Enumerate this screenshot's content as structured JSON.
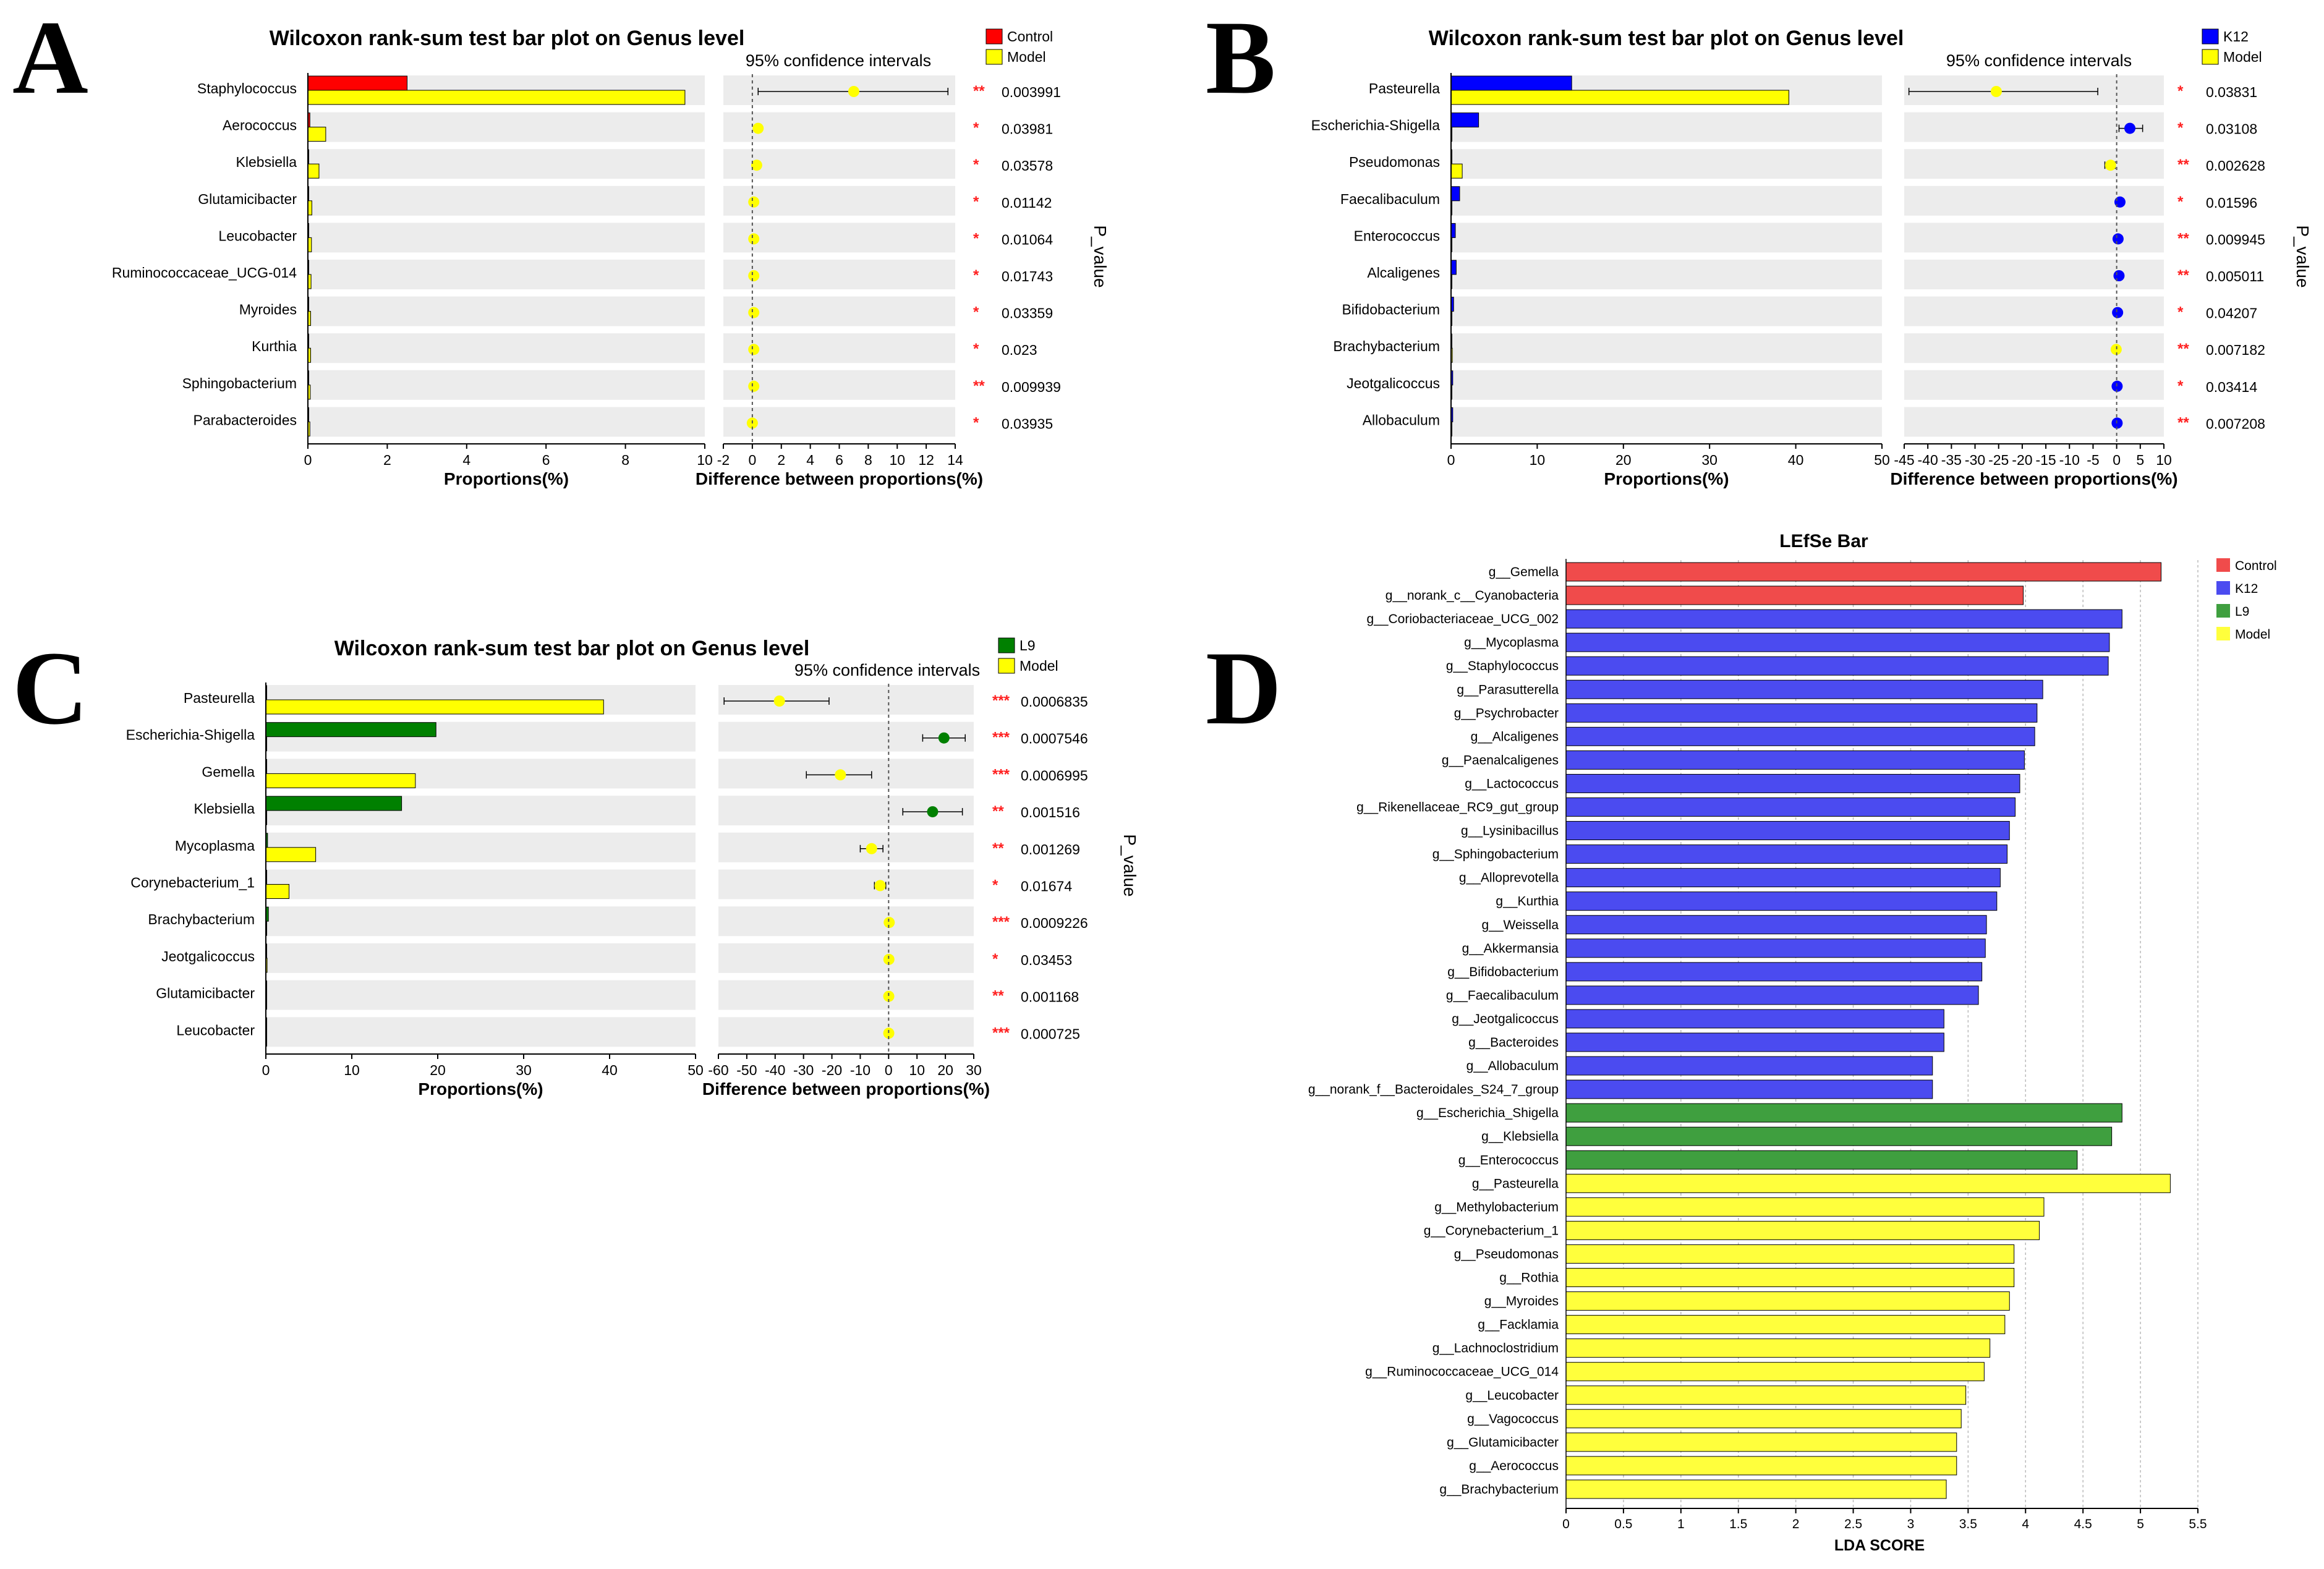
{
  "figure": {
    "panel_letters": [
      "A",
      "B",
      "C",
      "D"
    ]
  },
  "chart_data": [
    {
      "id": "A",
      "type": "bar",
      "title": "Wilcoxon rank-sum test bar plot on Genus level",
      "ci_title": "95% confidence intervals",
      "xlabel": "Proportions(%)",
      "ci_xlabel": "Difference between proportions(%)",
      "pvalue_label": "P_value",
      "xlim": [
        0,
        10
      ],
      "xticks": [
        0,
        2,
        4,
        6,
        8,
        10
      ],
      "ci_lim": [
        -2,
        14
      ],
      "ci_ticks": [
        -2,
        0,
        2,
        4,
        6,
        8,
        10,
        12,
        14
      ],
      "legend": [
        {
          "name": "Control",
          "color": "#ff0000"
        },
        {
          "name": "Model",
          "color": "#ffff00"
        }
      ],
      "categories": [
        "Staphylococcus",
        "Aerococcus",
        "Klebsiella",
        "Glutamicibacter",
        "Leucobacter",
        "Ruminococcaceae_UCG-014",
        "Myroides",
        "Kurthia",
        "Sphingobacterium",
        "Parabacteroides"
      ],
      "series": [
        {
          "name": "Control",
          "values": [
            2.5,
            0.05,
            0.02,
            0.01,
            0.01,
            0.01,
            0.01,
            0.01,
            0.01,
            0.01
          ]
        },
        {
          "name": "Model",
          "values": [
            9.5,
            0.45,
            0.28,
            0.1,
            0.09,
            0.08,
            0.07,
            0.07,
            0.06,
            0.05
          ]
        }
      ],
      "ci": [
        {
          "diff": 7.0,
          "low": 0.4,
          "high": 13.5,
          "group": "Model"
        },
        {
          "diff": 0.4,
          "low": 0.4,
          "high": 0.4,
          "group": "Model"
        },
        {
          "diff": 0.3,
          "low": 0.3,
          "high": 0.3,
          "group": "Model"
        },
        {
          "diff": 0.1,
          "low": 0.1,
          "high": 0.1,
          "group": "Model"
        },
        {
          "diff": 0.1,
          "low": 0.1,
          "high": 0.1,
          "group": "Model"
        },
        {
          "diff": 0.1,
          "low": 0.1,
          "high": 0.1,
          "group": "Model"
        },
        {
          "diff": 0.1,
          "low": 0.1,
          "high": 0.1,
          "group": "Model"
        },
        {
          "diff": 0.1,
          "low": 0.1,
          "high": 0.1,
          "group": "Model"
        },
        {
          "diff": 0.1,
          "low": 0.1,
          "high": 0.1,
          "group": "Model"
        },
        {
          "diff": 0.0,
          "low": 0.0,
          "high": 0.0,
          "group": "Model"
        }
      ],
      "stars": [
        "**",
        "*",
        "*",
        "*",
        "*",
        "*",
        "*",
        "*",
        "**",
        "*"
      ],
      "pvalues": [
        "0.003991",
        "0.03981",
        "0.03578",
        "0.01142",
        "0.01064",
        "0.01743",
        "0.03359",
        "0.023",
        "0.009939",
        "0.03935"
      ]
    },
    {
      "id": "B",
      "type": "bar",
      "title": "Wilcoxon rank-sum test bar plot on Genus level",
      "ci_title": "95% confidence intervals",
      "xlabel": "Proportions(%)",
      "ci_xlabel": "Difference between proportions(%)",
      "pvalue_label": "P_value",
      "xlim": [
        0,
        50
      ],
      "xticks": [
        0,
        10,
        20,
        30,
        40,
        50
      ],
      "ci_lim": [
        -45,
        10
      ],
      "ci_ticks": [
        -45,
        -40,
        -35,
        -30,
        -25,
        -20,
        -15,
        -10,
        -5,
        0,
        5,
        10
      ],
      "legend": [
        {
          "name": "K12",
          "color": "#0000ff"
        },
        {
          "name": "Model",
          "color": "#ffff00"
        }
      ],
      "categories": [
        "Pasteurella",
        "Escherichia-Shigella",
        "Pseudomonas",
        "Faecalibaculum",
        "Enterococcus",
        "Alcaligenes",
        "Bifidobacterium",
        "Brachybacterium",
        "Jeotgalicoccus",
        "Allobaculum"
      ],
      "series": [
        {
          "name": "K12",
          "values": [
            14,
            3.2,
            0.05,
            1.0,
            0.5,
            0.6,
            0.3,
            0.1,
            0.2,
            0.2
          ]
        },
        {
          "name": "Model",
          "values": [
            39.2,
            0.0,
            1.3,
            0.0,
            0.0,
            0.0,
            0.0,
            0.15,
            0.0,
            0.0
          ]
        }
      ],
      "ci": [
        {
          "diff": -25.5,
          "low": -44,
          "high": -4,
          "group": "Model"
        },
        {
          "diff": 2.8,
          "low": 0.5,
          "high": 5.5,
          "group": "K12"
        },
        {
          "diff": -1.3,
          "low": -2.5,
          "high": -0.3,
          "group": "Model"
        },
        {
          "diff": 0.7,
          "low": 0.3,
          "high": 1.1,
          "group": "K12"
        },
        {
          "diff": 0.3,
          "low": 0.1,
          "high": 0.5,
          "group": "K12"
        },
        {
          "diff": 0.5,
          "low": 0.2,
          "high": 0.8,
          "group": "K12"
        },
        {
          "diff": 0.2,
          "low": 0.0,
          "high": 0.4,
          "group": "K12"
        },
        {
          "diff": -0.1,
          "low": -0.3,
          "high": 0.1,
          "group": "Model"
        },
        {
          "diff": 0.1,
          "low": 0.0,
          "high": 0.2,
          "group": "K12"
        },
        {
          "diff": 0.1,
          "low": 0.0,
          "high": 0.2,
          "group": "K12"
        }
      ],
      "stars": [
        "*",
        "*",
        "**",
        "*",
        "**",
        "**",
        "*",
        "**",
        "*",
        "**"
      ],
      "pvalues": [
        "0.03831",
        "0.03108",
        "0.002628",
        "0.01596",
        "0.009945",
        "0.005011",
        "0.04207",
        "0.007182",
        "0.03414",
        "0.007208"
      ]
    },
    {
      "id": "C",
      "type": "bar",
      "title": "Wilcoxon rank-sum test bar plot on Genus level",
      "ci_title": "95% confidence intervals",
      "xlabel": "Proportions(%)",
      "ci_xlabel": "Difference between proportions(%)",
      "pvalue_label": "P_value",
      "xlim": [
        0,
        50
      ],
      "xticks": [
        0,
        10,
        20,
        30,
        40,
        50
      ],
      "ci_lim": [
        -60,
        30
      ],
      "ci_ticks": [
        -60,
        -50,
        -40,
        -30,
        -20,
        -10,
        0,
        10,
        20,
        30
      ],
      "legend": [
        {
          "name": "L9",
          "color": "#008000"
        },
        {
          "name": "Model",
          "color": "#ffff00"
        }
      ],
      "categories": [
        "Pasteurella",
        "Escherichia-Shigella",
        "Gemella",
        "Klebsiella",
        "Mycoplasma",
        "Corynebacterium_1",
        "Brachybacterium",
        "Jeotgalicoccus",
        "Glutamicibacter",
        "Leucobacter"
      ],
      "series": [
        {
          "name": "L9",
          "values": [
            0.1,
            19.8,
            0.1,
            15.8,
            0.2,
            0.1,
            0.3,
            0.1,
            0.05,
            0.05
          ]
        },
        {
          "name": "Model",
          "values": [
            39.3,
            0.05,
            17.4,
            0.05,
            5.8,
            2.7,
            0.1,
            0.15,
            0.1,
            0.08
          ]
        }
      ],
      "ci": [
        {
          "diff": -38.5,
          "low": -58,
          "high": -21,
          "group": "Model"
        },
        {
          "diff": 19.5,
          "low": 12,
          "high": 27,
          "group": "L9"
        },
        {
          "diff": -17,
          "low": -29,
          "high": -6,
          "group": "Model"
        },
        {
          "diff": 15.5,
          "low": 5,
          "high": 26,
          "group": "L9"
        },
        {
          "diff": -6,
          "low": -10,
          "high": -2,
          "group": "Model"
        },
        {
          "diff": -3,
          "low": -5,
          "high": -1,
          "group": "Model"
        },
        {
          "diff": 0.2,
          "low": 0.0,
          "high": 0.4,
          "group": "Model"
        },
        {
          "diff": 0.1,
          "low": 0.0,
          "high": 0.2,
          "group": "Model"
        },
        {
          "diff": 0.05,
          "low": 0.0,
          "high": 0.1,
          "group": "Model"
        },
        {
          "diff": 0.05,
          "low": 0.0,
          "high": 0.1,
          "group": "Model"
        }
      ],
      "stars": [
        "***",
        "***",
        "***",
        "**",
        "**",
        "*",
        "***",
        "*",
        "**",
        "***"
      ],
      "pvalues": [
        "0.0006835",
        "0.0007546",
        "0.0006995",
        "0.001516",
        "0.001269",
        "0.01674",
        "0.0009226",
        "0.03453",
        "0.001168",
        "0.000725"
      ]
    },
    {
      "id": "D",
      "type": "bar",
      "orientation": "horizontal",
      "title": "LEfSe Bar",
      "xlabel": "LDA SCORE",
      "xlim": [
        0,
        5.5
      ],
      "xticks": [
        0,
        0.5,
        1,
        1.5,
        2,
        2.5,
        3,
        3.5,
        4,
        4.5,
        5,
        5.5
      ],
      "xtick_labels": [
        "0",
        "0.5",
        "1",
        "1.5",
        "2",
        "2.5",
        "3",
        "3.5",
        "4",
        "4.5",
        "5",
        "5.5"
      ],
      "legend": [
        {
          "name": "Control",
          "color": "#f04b4b"
        },
        {
          "name": "K12",
          "color": "#4b4bf0"
        },
        {
          "name": "L9",
          "color": "#3f9f3f"
        },
        {
          "name": "Model",
          "color": "#ffff3c"
        }
      ],
      "group_colors": {
        "Control": "#f04b4b",
        "K12": "#4b4bf0",
        "L9": "#3f9f3f",
        "Model": "#ffff3c"
      },
      "categories": [
        "g__Gemella",
        "g__norank_c__Cyanobacteria",
        "g__Coriobacteriaceae_UCG_002",
        "g__Mycoplasma",
        "g__Staphylococcus",
        "g__Parasutterella",
        "g__Psychrobacter",
        "g__Alcaligenes",
        "g__Paenalcaligenes",
        "g__Lactococcus",
        "g__Rikenellaceae_RC9_gut_group",
        "g__Lysinibacillus",
        "g__Sphingobacterium",
        "g__Alloprevotella",
        "g__Kurthia",
        "g__Weissella",
        "g__Akkermansia",
        "g__Bifidobacterium",
        "g__Faecalibaculum",
        "g__Jeotgalicoccus",
        "g__Bacteroides",
        "g__Allobaculum",
        "g__norank_f__Bacteroidales_S24_7_group",
        "g__Escherichia_Shigella",
        "g__Klebsiella",
        "g__Enterococcus",
        "g__Pasteurella",
        "g__Methylobacterium",
        "g__Corynebacterium_1",
        "g__Pseudomonas",
        "g__Rothia",
        "g__Myroides",
        "g__Facklamia",
        "g__Lachnoclostridium",
        "g__Ruminococcaceae_UCG_014",
        "g__Leucobacter",
        "g__Vagococcus",
        "g__Glutamicibacter",
        "g__Aerococcus",
        "g__Brachybacterium"
      ],
      "groups": [
        "Control",
        "Control",
        "K12",
        "K12",
        "K12",
        "K12",
        "K12",
        "K12",
        "K12",
        "K12",
        "K12",
        "K12",
        "K12",
        "K12",
        "K12",
        "K12",
        "K12",
        "K12",
        "K12",
        "K12",
        "K12",
        "K12",
        "K12",
        "L9",
        "L9",
        "L9",
        "Model",
        "Model",
        "Model",
        "Model",
        "Model",
        "Model",
        "Model",
        "Model",
        "Model",
        "Model",
        "Model",
        "Model",
        "Model",
        "Model"
      ],
      "values": [
        5.18,
        3.98,
        4.84,
        4.73,
        4.72,
        4.15,
        4.1,
        4.08,
        3.99,
        3.95,
        3.91,
        3.86,
        3.84,
        3.78,
        3.75,
        3.66,
        3.65,
        3.62,
        3.59,
        3.29,
        3.29,
        3.19,
        3.19,
        4.84,
        4.75,
        4.45,
        5.26,
        4.16,
        4.12,
        3.9,
        3.9,
        3.86,
        3.82,
        3.69,
        3.64,
        3.48,
        3.44,
        3.4,
        3.4,
        3.31
      ]
    }
  ]
}
